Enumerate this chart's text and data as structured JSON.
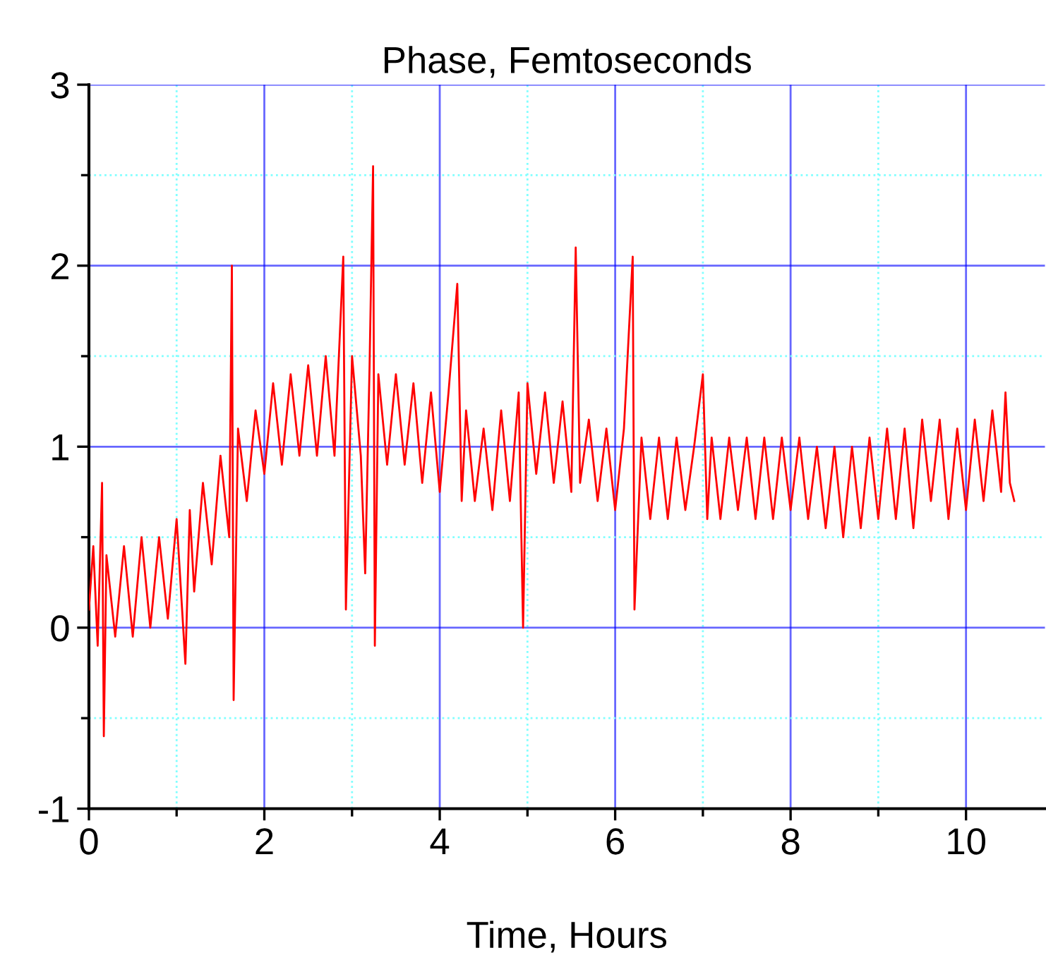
{
  "chart_data": {
    "type": "line",
    "title": "Phase, Femtoseconds",
    "xlabel": "Time, Hours",
    "xlim": [
      0,
      10.9
    ],
    "ylim": [
      -1,
      3
    ],
    "xticks": [
      0,
      {
        "value": 1,
        "label": null
      },
      2,
      {
        "value": 3,
        "label": null
      },
      4,
      {
        "value": 5,
        "label": null
      },
      6,
      {
        "value": 7,
        "label": null
      },
      8,
      {
        "value": 9,
        "label": null
      },
      10
    ],
    "yticks": [
      -1,
      {
        "value": -0.5,
        "label": null
      },
      0,
      {
        "value": 0.5,
        "label": null
      },
      1,
      {
        "value": 1.5,
        "label": null
      },
      2,
      {
        "value": 2.5,
        "label": null
      },
      3
    ],
    "grid": true,
    "marker": "none",
    "line_style": "solid",
    "legend": false,
    "series": [
      {
        "color": "#ff0000",
        "x": [
          0.0,
          0.05,
          0.1,
          0.15,
          0.17,
          0.2,
          0.3,
          0.4,
          0.5,
          0.6,
          0.7,
          0.8,
          0.9,
          1.0,
          1.1,
          1.15,
          1.2,
          1.3,
          1.4,
          1.5,
          1.6,
          1.63,
          1.65,
          1.7,
          1.8,
          1.9,
          2.0,
          2.1,
          2.2,
          2.3,
          2.4,
          2.5,
          2.6,
          2.7,
          2.8,
          2.9,
          2.93,
          3.0,
          3.1,
          3.15,
          3.2,
          3.24,
          3.26,
          3.3,
          3.4,
          3.5,
          3.6,
          3.7,
          3.8,
          3.9,
          4.0,
          4.1,
          4.2,
          4.25,
          4.3,
          4.4,
          4.5,
          4.6,
          4.7,
          4.8,
          4.9,
          4.95,
          5.0,
          5.1,
          5.2,
          5.3,
          5.4,
          5.5,
          5.55,
          5.6,
          5.7,
          5.8,
          5.9,
          6.0,
          6.1,
          6.2,
          6.22,
          6.3,
          6.4,
          6.5,
          6.6,
          6.7,
          6.8,
          6.9,
          7.0,
          7.05,
          7.1,
          7.2,
          7.3,
          7.4,
          7.5,
          7.6,
          7.7,
          7.8,
          7.9,
          8.0,
          8.1,
          8.2,
          8.3,
          8.4,
          8.5,
          8.6,
          8.7,
          8.8,
          8.9,
          9.0,
          9.1,
          9.2,
          9.3,
          9.4,
          9.5,
          9.6,
          9.7,
          9.8,
          9.9,
          10.0,
          10.1,
          10.2,
          10.3,
          10.4,
          10.45,
          10.5,
          10.55
        ],
        "values": [
          0.1,
          0.45,
          -0.1,
          0.8,
          -0.6,
          0.4,
          -0.05,
          0.45,
          -0.05,
          0.5,
          0.0,
          0.5,
          0.05,
          0.6,
          -0.2,
          0.65,
          0.2,
          0.8,
          0.35,
          0.95,
          0.5,
          2.0,
          -0.4,
          1.1,
          0.7,
          1.2,
          0.85,
          1.35,
          0.9,
          1.4,
          0.95,
          1.45,
          0.95,
          1.5,
          0.95,
          2.05,
          0.1,
          1.5,
          0.95,
          0.3,
          1.45,
          2.55,
          -0.1,
          1.4,
          0.9,
          1.4,
          0.9,
          1.35,
          0.8,
          1.3,
          0.75,
          1.3,
          1.9,
          0.7,
          1.2,
          0.7,
          1.1,
          0.65,
          1.2,
          0.7,
          1.3,
          0.0,
          1.35,
          0.85,
          1.3,
          0.8,
          1.25,
          0.75,
          2.1,
          0.8,
          1.15,
          0.7,
          1.1,
          0.65,
          1.1,
          2.05,
          0.1,
          1.05,
          0.6,
          1.05,
          0.6,
          1.05,
          0.65,
          1.0,
          1.4,
          0.6,
          1.05,
          0.6,
          1.05,
          0.65,
          1.05,
          0.6,
          1.05,
          0.6,
          1.05,
          0.65,
          1.05,
          0.6,
          1.0,
          0.55,
          1.0,
          0.5,
          1.0,
          0.55,
          1.05,
          0.6,
          1.1,
          0.6,
          1.1,
          0.55,
          1.15,
          0.7,
          1.15,
          0.6,
          1.1,
          0.65,
          1.15,
          0.7,
          1.2,
          0.75,
          1.3,
          0.8,
          0.7
        ]
      }
    ]
  }
}
